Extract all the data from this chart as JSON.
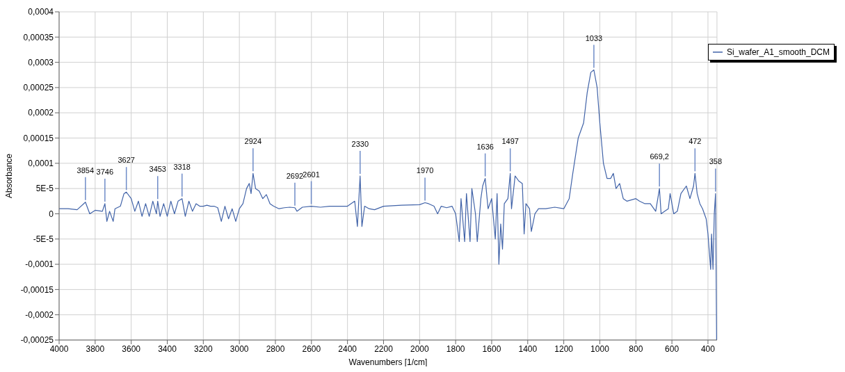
{
  "chart_data": {
    "type": "line",
    "xlabel": "Wavenumbers [1/cm]",
    "ylabel": "Absorbance",
    "x": [
      4000,
      3950,
      3900,
      3854,
      3830,
      3800,
      3760,
      3746,
      3735,
      3720,
      3700,
      3690,
      3660,
      3640,
      3627,
      3600,
      3580,
      3560,
      3540,
      3520,
      3500,
      3480,
      3460,
      3453,
      3440,
      3420,
      3400,
      3380,
      3360,
      3340,
      3318,
      3300,
      3280,
      3260,
      3240,
      3220,
      3200,
      3180,
      3160,
      3140,
      3120,
      3100,
      3080,
      3060,
      3040,
      3020,
      3000,
      2980,
      2960,
      2945,
      2935,
      2924,
      2910,
      2890,
      2870,
      2850,
      2830,
      2810,
      2780,
      2750,
      2720,
      2692,
      2680,
      2650,
      2601,
      2550,
      2500,
      2450,
      2400,
      2360,
      2345,
      2330,
      2320,
      2305,
      2280,
      2250,
      2200,
      2100,
      2000,
      1970,
      1950,
      1920,
      1900,
      1880,
      1850,
      1820,
      1800,
      1780,
      1770,
      1750,
      1740,
      1720,
      1710,
      1690,
      1680,
      1660,
      1650,
      1636,
      1620,
      1600,
      1580,
      1570,
      1560,
      1550,
      1540,
      1530,
      1510,
      1497,
      1490,
      1470,
      1450,
      1430,
      1420,
      1410,
      1390,
      1380,
      1360,
      1340,
      1300,
      1250,
      1200,
      1170,
      1150,
      1120,
      1090,
      1070,
      1050,
      1033,
      1015,
      1000,
      980,
      960,
      940,
      925,
      910,
      890,
      870,
      850,
      800,
      780,
      750,
      720,
      690,
      669.2,
      660,
      640,
      620,
      610,
      590,
      570,
      550,
      520,
      500,
      480,
      472,
      460,
      445,
      430,
      410,
      400,
      385,
      380,
      372,
      365,
      358,
      352
    ],
    "series": [
      {
        "name": "Si_wafer_A1_smooth_DCM",
        "color": "#4163a8",
        "values": [
          1e-05,
          1e-05,
          8e-06,
          2.3e-05,
          0,
          7e-06,
          5e-06,
          2e-05,
          -1.5e-05,
          5e-06,
          -1.5e-05,
          1e-05,
          1.5e-05,
          4e-05,
          4.3e-05,
          3e-05,
          5e-06,
          2.5e-05,
          -5e-06,
          2e-05,
          -5e-06,
          2.5e-05,
          0,
          2.5e-05,
          -5e-06,
          2e-05,
          -5e-06,
          2.5e-05,
          0,
          2.5e-05,
          3e-05,
          -5e-06,
          2.5e-05,
          5e-06,
          2e-05,
          1.5e-05,
          1.5e-05,
          1.7e-05,
          1.5e-05,
          1.5e-05,
          1.2e-05,
          -1.5e-05,
          1.5e-05,
          -1e-05,
          1e-05,
          -1.5e-05,
          1e-05,
          2e-05,
          5e-05,
          6e-05,
          4e-05,
          8e-05,
          5e-05,
          4.5e-05,
          3e-05,
          3.8e-05,
          2e-05,
          1.5e-05,
          1e-05,
          1.2e-05,
          1.3e-05,
          1.2e-05,
          5e-06,
          1.3e-05,
          1.5e-05,
          1.3e-05,
          1.5e-05,
          1.5e-05,
          1.5e-05,
          2.5e-05,
          -2.5e-05,
          7.5e-05,
          -2.5e-05,
          1.5e-05,
          1e-05,
          8e-06,
          1.5e-05,
          1.7e-05,
          1.8e-05,
          2.2e-05,
          2e-05,
          1.5e-05,
          0,
          1.5e-05,
          1.2e-05,
          1.5e-05,
          0,
          -5.5e-05,
          3e-05,
          -5.5e-05,
          4e-05,
          -5.5e-05,
          5e-05,
          0,
          -5.5e-05,
          3e-05,
          5.5e-05,
          7e-05,
          1e-05,
          3e-05,
          -5e-05,
          4e-05,
          -0.0001,
          -2e-05,
          -7e-05,
          2e-05,
          3e-05,
          8e-05,
          1e-05,
          7.5e-05,
          6.5e-05,
          6e-05,
          -4e-05,
          2e-05,
          1e-05,
          -3.5e-05,
          0,
          1e-05,
          1e-05,
          1.3e-05,
          1e-05,
          3e-05,
          8e-05,
          0.00015,
          0.00018,
          0.00024,
          0.00028,
          0.000285,
          0.00025,
          0.00018,
          0.0001,
          7e-05,
          7e-05,
          8e-05,
          5e-05,
          6e-05,
          3e-05,
          2.5e-05,
          3e-05,
          2.5e-05,
          2e-05,
          2e-05,
          5e-06,
          5e-05,
          0,
          5e-06,
          1e-05,
          4e-05,
          0,
          5e-06,
          4e-05,
          5.5e-05,
          3e-05,
          5.5e-05,
          8e-05,
          4e-05,
          2e-05,
          1e-05,
          -1e-05,
          -4e-05,
          -0.00011,
          -4e-05,
          -0.00011,
          0,
          4e-05,
          -0.00025
        ]
      }
    ],
    "xlim": [
      4000,
      350
    ],
    "xticks": [
      4000,
      3800,
      3600,
      3400,
      3200,
      3000,
      2800,
      2600,
      2400,
      2200,
      2000,
      1800,
      1600,
      1400,
      1200,
      1000,
      800,
      600,
      400
    ],
    "ylim": [
      -0.00025,
      0.0004
    ],
    "yticks": [
      {
        "value": -0.00025,
        "label": "-0,00025"
      },
      {
        "value": -0.0002,
        "label": "-0,0002"
      },
      {
        "value": -0.00015,
        "label": "-0,00015"
      },
      {
        "value": -0.0001,
        "label": "-0,0001"
      },
      {
        "value": -5e-05,
        "label": "-5E-5"
      },
      {
        "value": 0,
        "label": "0"
      },
      {
        "value": 5e-05,
        "label": "5E-5"
      },
      {
        "value": 0.0001,
        "label": "0,0001"
      },
      {
        "value": 0.00015,
        "label": "0,00015"
      },
      {
        "value": 0.0002,
        "label": "0,0002"
      },
      {
        "value": 0.00025,
        "label": "0,00025"
      },
      {
        "value": 0.0003,
        "label": "0,0003"
      },
      {
        "value": 0.00035,
        "label": "0,00035"
      },
      {
        "value": 0.0004,
        "label": "0,0004"
      }
    ],
    "annotations": [
      {
        "text": "3854",
        "x": 3854,
        "y": 2.3e-05
      },
      {
        "text": "3746",
        "x": 3746,
        "y": 2e-05
      },
      {
        "text": "3627",
        "x": 3627,
        "y": 4.3e-05
      },
      {
        "text": "3453",
        "x": 3453,
        "y": 2.5e-05
      },
      {
        "text": "3318",
        "x": 3318,
        "y": 3e-05
      },
      {
        "text": "2924",
        "x": 2924,
        "y": 8e-05
      },
      {
        "text": "2692",
        "x": 2692,
        "y": 1.2e-05
      },
      {
        "text": "2601",
        "x": 2601,
        "y": 1.5e-05
      },
      {
        "text": "2330",
        "x": 2330,
        "y": 7.5e-05
      },
      {
        "text": "1970",
        "x": 1970,
        "y": 2.2e-05
      },
      {
        "text": "1636",
        "x": 1636,
        "y": 7e-05
      },
      {
        "text": "1497",
        "x": 1497,
        "y": 8e-05
      },
      {
        "text": "1033",
        "x": 1033,
        "y": 0.000285
      },
      {
        "text": "669,2",
        "x": 669.2,
        "y": 5e-05
      },
      {
        "text": "472",
        "x": 472,
        "y": 8e-05
      },
      {
        "text": "358",
        "x": 358,
        "y": 4e-05
      }
    ],
    "grid": true,
    "legend": "top right"
  }
}
